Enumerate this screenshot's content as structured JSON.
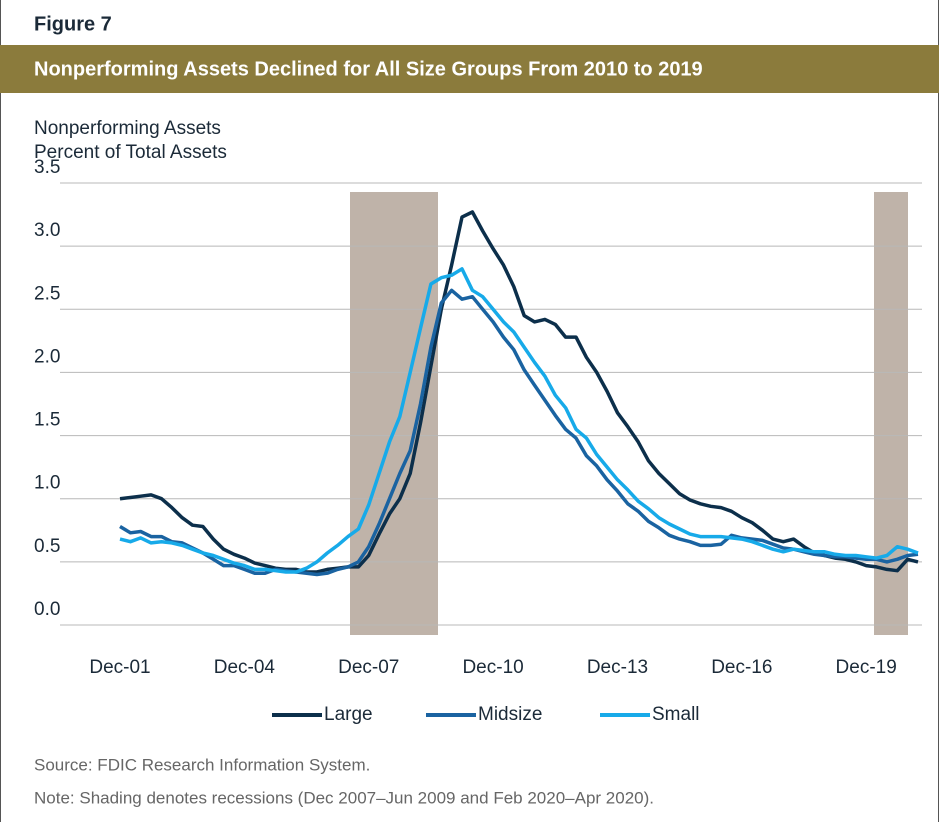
{
  "figure_label": "Figure 7",
  "chart_data": {
    "type": "line",
    "title": "Nonperforming Assets Declined for All Size Groups From 2010 to 2019",
    "y_label": [
      "Nonperforming Assets",
      "Percent of Total Assets"
    ],
    "categories": [
      "Dec-01",
      null,
      null,
      null,
      null,
      null,
      null,
      null,
      null,
      null,
      null,
      null,
      "Dec-04",
      null,
      null,
      null,
      null,
      null,
      null,
      null,
      null,
      null,
      null,
      null,
      "Dec-07",
      null,
      null,
      null,
      null,
      null,
      null,
      null,
      null,
      null,
      null,
      null,
      "Dec-10",
      null,
      null,
      null,
      null,
      null,
      null,
      null,
      null,
      null,
      null,
      null,
      "Dec-13",
      null,
      null,
      null,
      null,
      null,
      null,
      null,
      null,
      null,
      null,
      null,
      "Dec-16",
      null,
      null,
      null,
      null,
      null,
      null,
      null,
      null,
      null,
      null,
      null,
      "Dec-19",
      null,
      null,
      null,
      null,
      null
    ],
    "series": [
      {
        "name": "Large",
        "color": "#0c2f4b",
        "values": [
          1.0,
          1.01,
          1.02,
          1.03,
          1.0,
          0.93,
          0.85,
          0.79,
          0.78,
          0.68,
          0.6,
          0.56,
          0.53,
          0.49,
          0.47,
          0.45,
          0.44,
          0.44,
          0.42,
          0.42,
          0.44,
          0.45,
          0.46,
          0.46,
          0.55,
          0.72,
          0.88,
          1.0,
          1.2,
          1.6,
          2.05,
          2.5,
          2.85,
          3.23,
          3.27,
          3.12,
          2.98,
          2.85,
          2.68,
          2.45,
          2.4,
          2.42,
          2.38,
          2.28,
          2.28,
          2.12,
          2.0,
          1.85,
          1.68,
          1.57,
          1.45,
          1.3,
          1.2,
          1.12,
          1.04,
          0.99,
          0.96,
          0.94,
          0.93,
          0.9,
          0.85,
          0.81,
          0.75,
          0.68,
          0.66,
          0.68,
          0.62,
          0.57,
          0.55,
          0.53,
          0.52,
          0.5,
          0.47,
          0.46,
          0.44,
          0.43,
          0.52,
          0.5
        ]
      },
      {
        "name": "Midsize",
        "color": "#1a63a1",
        "values": [
          0.78,
          0.73,
          0.74,
          0.7,
          0.7,
          0.66,
          0.65,
          0.61,
          0.57,
          0.52,
          0.47,
          0.47,
          0.44,
          0.41,
          0.41,
          0.44,
          0.43,
          0.42,
          0.41,
          0.4,
          0.41,
          0.44,
          0.46,
          0.5,
          0.62,
          0.8,
          1.0,
          1.2,
          1.38,
          1.75,
          2.2,
          2.55,
          2.65,
          2.58,
          2.6,
          2.5,
          2.4,
          2.28,
          2.18,
          2.02,
          1.9,
          1.78,
          1.66,
          1.55,
          1.48,
          1.34,
          1.26,
          1.15,
          1.06,
          0.96,
          0.9,
          0.82,
          0.77,
          0.71,
          0.68,
          0.66,
          0.63,
          0.63,
          0.64,
          0.71,
          0.69,
          0.68,
          0.67,
          0.64,
          0.61,
          0.6,
          0.58,
          0.56,
          0.55,
          0.54,
          0.54,
          0.53,
          0.52,
          0.52,
          0.5,
          0.52,
          0.55,
          0.56
        ]
      },
      {
        "name": "Small",
        "color": "#17aae9",
        "values": [
          0.68,
          0.66,
          0.69,
          0.65,
          0.66,
          0.65,
          0.63,
          0.6,
          0.57,
          0.55,
          0.52,
          0.49,
          0.47,
          0.44,
          0.44,
          0.43,
          0.42,
          0.42,
          0.45,
          0.5,
          0.57,
          0.63,
          0.7,
          0.76,
          0.95,
          1.2,
          1.45,
          1.65,
          2.0,
          2.35,
          2.7,
          2.75,
          2.77,
          2.82,
          2.65,
          2.6,
          2.5,
          2.4,
          2.32,
          2.2,
          2.08,
          1.97,
          1.82,
          1.72,
          1.55,
          1.48,
          1.35,
          1.25,
          1.15,
          1.07,
          0.98,
          0.92,
          0.85,
          0.8,
          0.76,
          0.72,
          0.7,
          0.7,
          0.7,
          0.69,
          0.68,
          0.66,
          0.63,
          0.6,
          0.58,
          0.6,
          0.59,
          0.58,
          0.58,
          0.56,
          0.55,
          0.55,
          0.54,
          0.53,
          0.55,
          0.62,
          0.6,
          0.57
        ]
      }
    ],
    "ylim": [
      0,
      3.5
    ],
    "yticks": [
      {
        "value": 0,
        "label": "0.0"
      },
      0.5,
      {
        "value": 1,
        "label": "1.0"
      },
      1.5,
      {
        "value": 2,
        "label": "2.0"
      },
      2.5,
      {
        "value": 3,
        "label": "3.0"
      },
      3.5
    ],
    "grid": true
  },
  "source": "Source: FDIC Research Information System.",
  "note": "Note: Shading denotes recessions (Dec 2007–Jun 2009 and Feb 2020–Apr 2020)."
}
